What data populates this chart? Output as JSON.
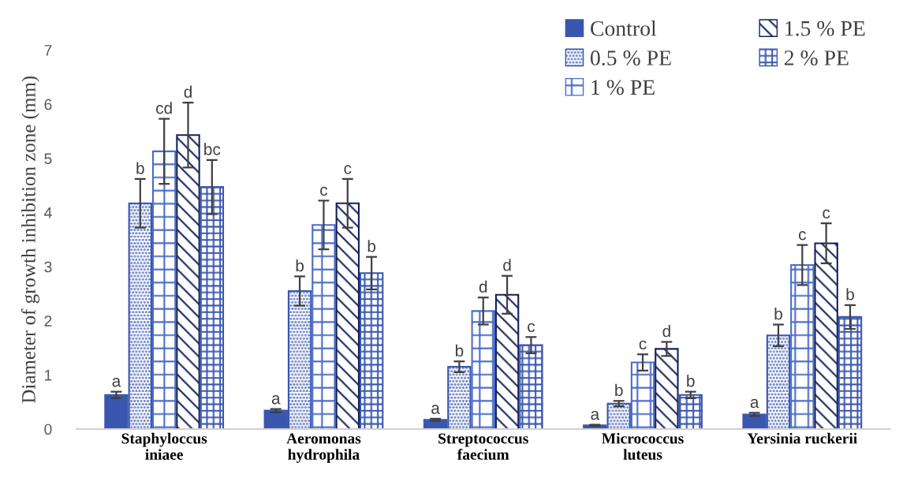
{
  "chart_data": {
    "type": "bar",
    "ylabel": "Diameter of growth inhibition zone (mm)",
    "categories": [
      "Staphyloccus\niniaee",
      "Aeromonas\nhydrophila",
      "Streptococcus\nfaecium",
      "Micrococcus\nluteus",
      "Yersinia ruckerii"
    ],
    "ylim": [
      0,
      7
    ],
    "yticks": [
      0,
      1,
      2,
      3,
      4,
      5,
      6,
      7
    ],
    "grid": false,
    "legend": "top right",
    "series": [
      {
        "name": "Control",
        "color": "#3a57b0",
        "values": [
          0.63,
          0.34,
          0.17,
          0.07,
          0.27
        ],
        "errors": [
          0.06,
          0.03,
          0.02,
          0.01,
          0.03
        ],
        "value_labels": [
          "a",
          "a",
          "a",
          "a",
          "a"
        ]
      },
      {
        "name": "0.5 % PE",
        "color": "#3a57b0",
        "values": [
          4.17,
          2.55,
          1.15,
          0.47,
          1.73
        ],
        "errors": [
          0.45,
          0.27,
          0.1,
          0.05,
          0.2
        ],
        "value_labels": [
          "b",
          "b",
          "b",
          "b",
          "b"
        ]
      },
      {
        "name": "1 % PE",
        "color": "#4a6cc8",
        "values": [
          5.13,
          3.77,
          2.18,
          1.23,
          3.03
        ],
        "errors": [
          0.6,
          0.45,
          0.25,
          0.15,
          0.37
        ],
        "value_labels": [
          "cd",
          "c",
          "d",
          "c",
          "c"
        ]
      },
      {
        "name": "1.5 % PE",
        "color": "#14205a",
        "values": [
          5.43,
          4.17,
          2.48,
          1.48,
          3.43
        ],
        "errors": [
          0.6,
          0.45,
          0.35,
          0.13,
          0.37
        ],
        "value_labels": [
          "d",
          "c",
          "d",
          "d",
          "c"
        ]
      },
      {
        "name": "2 % PE",
        "color": "#3a57b0",
        "values": [
          4.47,
          2.88,
          1.55,
          0.63,
          2.07
        ],
        "errors": [
          0.5,
          0.3,
          0.15,
          0.06,
          0.22
        ],
        "value_labels": [
          "bc",
          "b",
          "c",
          "b",
          "b"
        ]
      }
    ]
  }
}
